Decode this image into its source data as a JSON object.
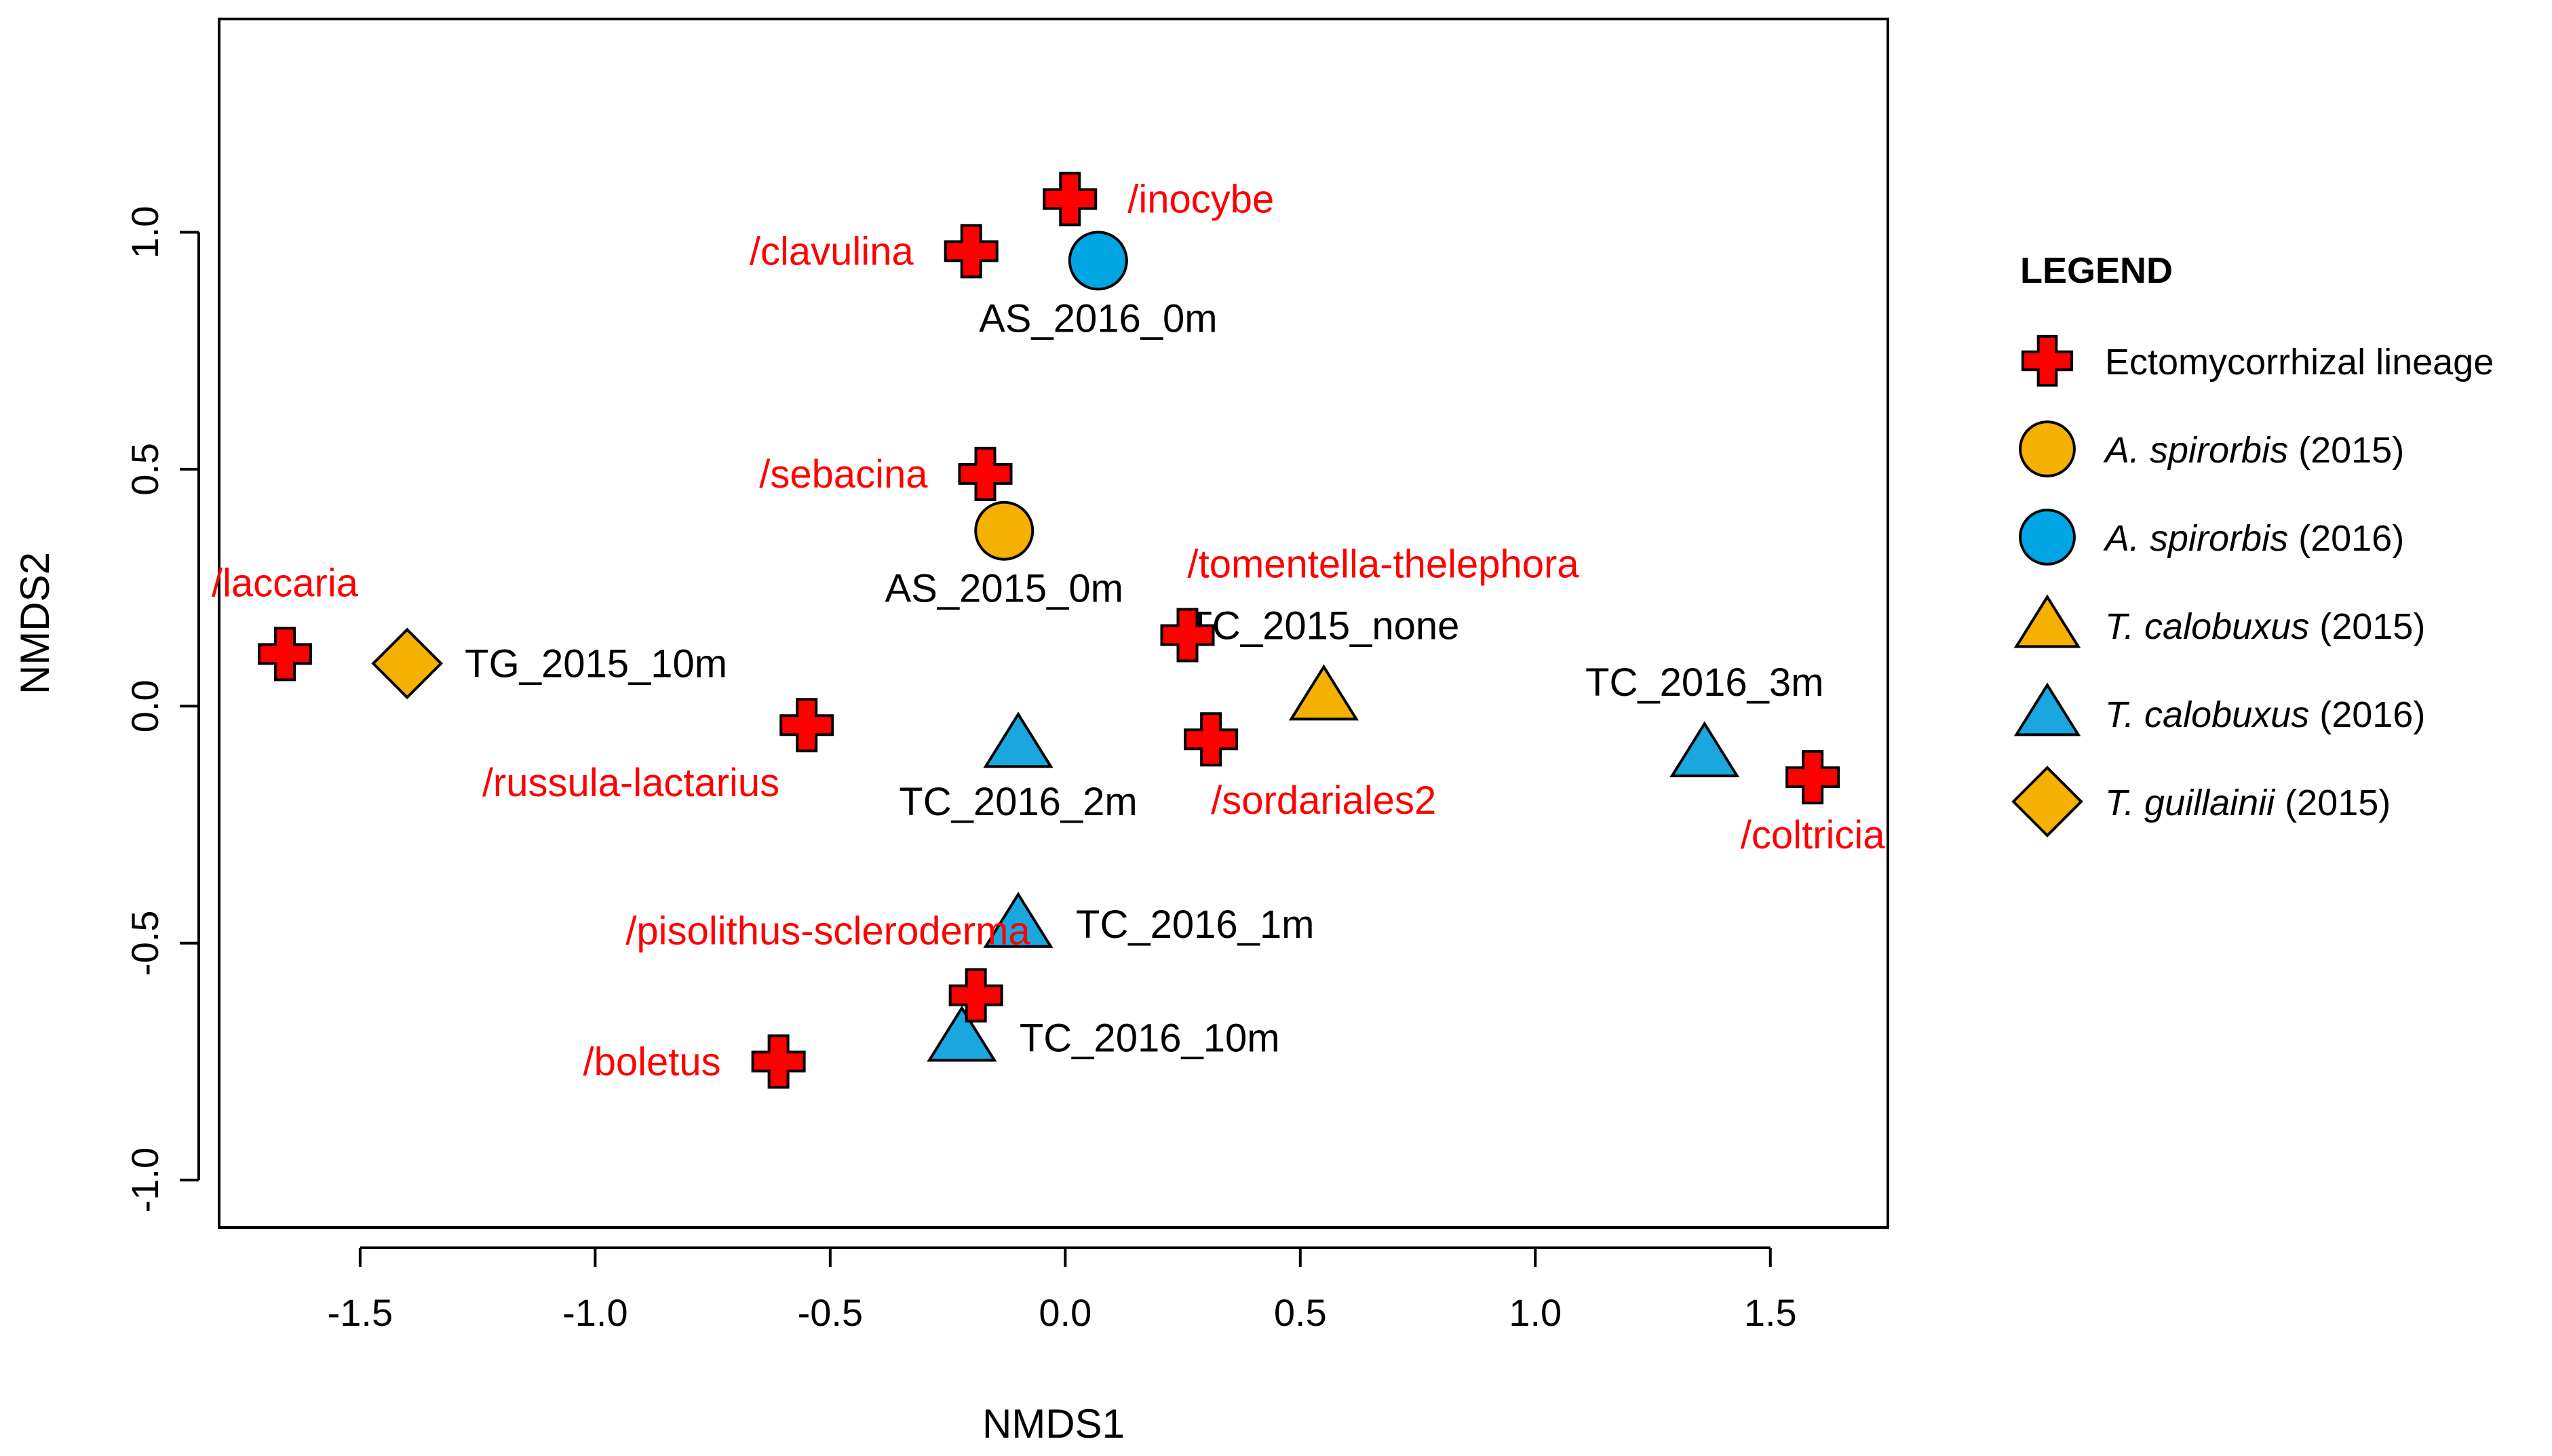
{
  "chart_data": {
    "type": "scatter",
    "title": "",
    "xlabel": "NMDS1",
    "ylabel": "NMDS2",
    "xlim": [
      -1.8,
      1.75
    ],
    "ylim": [
      -1.1,
      1.45
    ],
    "xticks": [
      "-1.5",
      "-1.0",
      "-0.5",
      "0.0",
      "0.5",
      "1.0",
      "1.5"
    ],
    "xtick_values": [
      -1.5,
      -1.0,
      -0.5,
      0.0,
      0.5,
      1.0,
      1.5
    ],
    "yticks": [
      "-1.0",
      "-0.5",
      "0.0",
      "0.5",
      "1.0"
    ],
    "ytick_values": [
      -1.0,
      -0.5,
      0.0,
      0.5,
      1.0
    ],
    "grid": false,
    "legend_position": "right",
    "colors": {
      "lineage": "#ff0000",
      "as2015": "#f5b000",
      "as2016": "#00a6e4",
      "tc2015": "#f5b000",
      "tc2016": "#1aa7e0",
      "tg2015": "#f5b000",
      "outline": "#000000"
    },
    "lineages": [
      {
        "name": "/inocybe",
        "x": 0.01,
        "y": 1.07,
        "label_pos": "right"
      },
      {
        "name": "/clavulina",
        "x": -0.2,
        "y": 0.96,
        "label_pos": "left"
      },
      {
        "name": "/sebacina",
        "x": -0.17,
        "y": 0.49,
        "label_pos": "left"
      },
      {
        "name": "/laccaria",
        "x": -1.66,
        "y": 0.11,
        "label_pos": "above"
      },
      {
        "name": "/russula-lactarius",
        "x": -0.55,
        "y": -0.04,
        "label_pos": "below-left"
      },
      {
        "name": "/tomentella-thelephora",
        "x": 0.26,
        "y": 0.15,
        "label_pos": "above-right"
      },
      {
        "name": "/sordariales2",
        "x": 0.31,
        "y": -0.07,
        "label_pos": "below-right"
      },
      {
        "name": "/coltricia",
        "x": 1.59,
        "y": -0.15,
        "label_pos": "below"
      },
      {
        "name": "/pisolithus-scleroderma",
        "x": -0.19,
        "y": -0.61,
        "label_pos": "above-left"
      },
      {
        "name": "/boletus",
        "x": -0.61,
        "y": -0.75,
        "label_pos": "left"
      }
    ],
    "samples": [
      {
        "name": "AS_2016_0m",
        "x": 0.07,
        "y": 0.94,
        "shape": "circle",
        "group": "as2016",
        "label_pos": "below"
      },
      {
        "name": "AS_2015_0m",
        "x": -0.13,
        "y": 0.37,
        "shape": "circle",
        "group": "as2015",
        "label_pos": "below"
      },
      {
        "name": "TG_2015_10m",
        "x": -1.4,
        "y": 0.09,
        "shape": "diamond",
        "group": "tg2015",
        "label_pos": "right"
      },
      {
        "name": "TC_2015_none",
        "x": 0.55,
        "y": 0.02,
        "shape": "triangle",
        "group": "tc2015",
        "label_pos": "above"
      },
      {
        "name": "TC_2016_3m",
        "x": 1.36,
        "y": -0.1,
        "shape": "triangle",
        "group": "tc2016",
        "label_pos": "above"
      },
      {
        "name": "TC_2016_2m",
        "x": -0.1,
        "y": -0.08,
        "shape": "triangle",
        "group": "tc2016",
        "label_pos": "below"
      },
      {
        "name": "TC_2016_1m",
        "x": -0.1,
        "y": -0.46,
        "shape": "triangle",
        "group": "tc2016",
        "label_pos": "right"
      },
      {
        "name": "TC_2016_10m",
        "x": -0.22,
        "y": -0.7,
        "shape": "triangle",
        "group": "tc2016",
        "label_pos": "right"
      }
    ],
    "legend": {
      "title": "LEGEND",
      "items": [
        {
          "shape": "cross",
          "group": "lineage",
          "italic": "",
          "text": "Ectomycorrhizal lineage",
          "text_color": "#ff0000"
        },
        {
          "shape": "circle",
          "group": "as2015",
          "italic": "A. spirorbis",
          "text": " (2015)",
          "text_color": "#000000"
        },
        {
          "shape": "circle",
          "group": "as2016",
          "italic": "A. spirorbis",
          "text": " (2016)",
          "text_color": "#000000"
        },
        {
          "shape": "triangle",
          "group": "tc2015",
          "italic": "T. calobuxus",
          "text": " (2015)",
          "text_color": "#000000"
        },
        {
          "shape": "triangle",
          "group": "tc2016",
          "italic": "T. calobuxus",
          "text": " (2016)",
          "text_color": "#000000"
        },
        {
          "shape": "diamond",
          "group": "tg2015",
          "italic": "T. guillainii",
          "text": " (2015)",
          "text_color": "#000000"
        }
      ]
    }
  }
}
